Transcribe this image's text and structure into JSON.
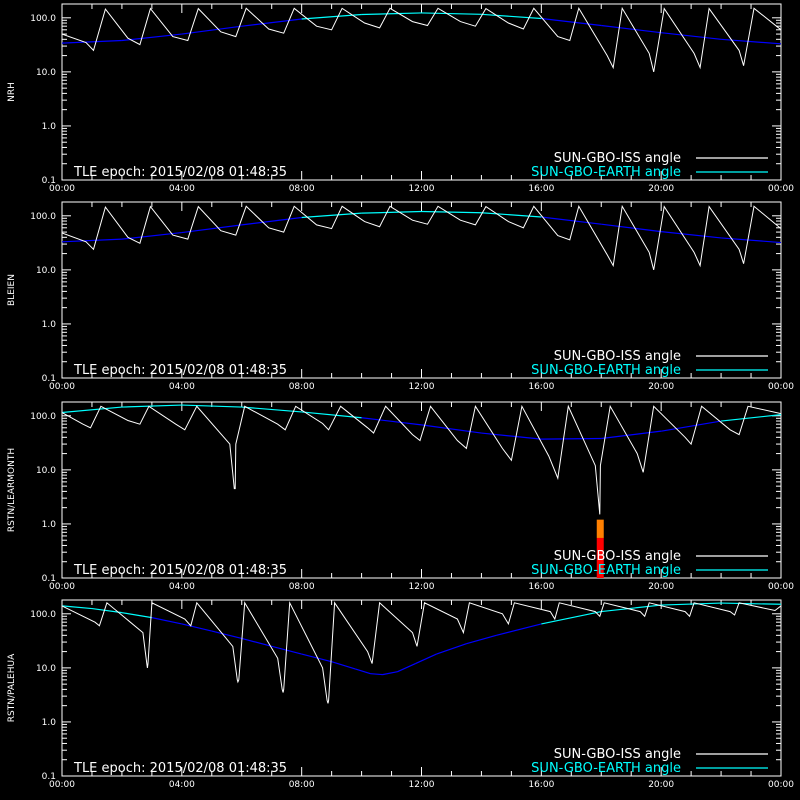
{
  "colors": {
    "background": "#000000",
    "axes": "#ffffff",
    "iss_curve": "#ffffff",
    "earth_curve_low": "#0000ff",
    "earth_curve_high": "#00ffff",
    "legend_earth_text": "#00ffff",
    "event_bar_top": "#ff8000",
    "event_bar_bottom": "#ff0000"
  },
  "legend": {
    "iss_label": "SUN-GBO-ISS angle",
    "earth_label": "SUN-GBO-EARTH angle"
  },
  "epoch_text": "TLE epoch: 2015/02/08 01:48:35",
  "chart_data": [
    {
      "type": "line",
      "ylabel": "NRH",
      "yscale": "log",
      "ylim": [
        0.1,
        180
      ],
      "yticks": [
        "0.1",
        "1.0",
        "10.0",
        "100.0"
      ],
      "xlim": [
        "00:00",
        "24:00"
      ],
      "xticks": [
        "00:00",
        "04:00",
        "08:00",
        "12:00",
        "16:00",
        "20:00",
        "00:00"
      ],
      "series": [
        {
          "name": "SUN-GBO-EARTH angle",
          "x": [
            0,
            2,
            4,
            6,
            8,
            10,
            12,
            14,
            16,
            18,
            20,
            22,
            24
          ],
          "values": [
            34,
            38,
            50,
            70,
            95,
            115,
            123,
            116,
            97,
            72,
            53,
            40,
            33
          ]
        },
        {
          "name": "SUN-GBO-ISS angle",
          "x": [
            0,
            0.8,
            1.05,
            1.45,
            2.2,
            2.6,
            2.95,
            3.7,
            4.2,
            4.55,
            5.3,
            5.8,
            6.15,
            6.9,
            7.4,
            7.75,
            8.5,
            9.0,
            9.35,
            10.1,
            10.6,
            10.95,
            11.7,
            12.2,
            12.55,
            13.3,
            13.8,
            14.15,
            14.9,
            15.4,
            15.75,
            16.55,
            16.95,
            17.25,
            18.2,
            18.4,
            18.7,
            19.6,
            19.75,
            20.1,
            21.1,
            21.3,
            21.6,
            22.6,
            22.75,
            23.1,
            24
          ],
          "values": [
            50,
            35,
            25,
            145,
            42,
            32,
            148,
            45,
            38,
            148,
            55,
            45,
            150,
            62,
            52,
            150,
            70,
            60,
            150,
            80,
            65,
            150,
            85,
            72,
            150,
            85,
            70,
            148,
            80,
            62,
            150,
            45,
            38,
            150,
            20,
            12,
            150,
            22,
            10,
            148,
            22,
            12,
            148,
            25,
            13,
            150,
            60
          ]
        }
      ]
    },
    {
      "type": "line",
      "ylabel": "BLEIEN",
      "yscale": "log",
      "ylim": [
        0.1,
        180
      ],
      "yticks": [
        "0.1",
        "1.0",
        "10.0",
        "100.0"
      ],
      "xlim": [
        "00:00",
        "24:00"
      ],
      "xticks": [
        "00:00",
        "04:00",
        "08:00",
        "12:00",
        "16:00",
        "20:00",
        "00:00"
      ],
      "series": [
        {
          "name": "SUN-GBO-EARTH angle",
          "x": [
            0,
            2,
            4,
            6,
            8,
            10,
            12,
            14,
            16,
            18,
            20,
            22,
            24
          ],
          "values": [
            33,
            37,
            49,
            68,
            93,
            112,
            120,
            114,
            95,
            70,
            51,
            39,
            32
          ]
        },
        {
          "name": "SUN-GBO-ISS angle",
          "x": [
            0,
            0.8,
            1.05,
            1.45,
            2.2,
            2.6,
            2.95,
            3.7,
            4.2,
            4.55,
            5.3,
            5.8,
            6.15,
            6.9,
            7.4,
            7.75,
            8.5,
            9.0,
            9.35,
            10.1,
            10.6,
            10.95,
            11.7,
            12.2,
            12.55,
            13.3,
            13.8,
            14.15,
            14.9,
            15.4,
            15.75,
            16.55,
            16.95,
            17.25,
            18.2,
            18.4,
            18.7,
            19.6,
            19.75,
            20.1,
            21.1,
            21.3,
            21.6,
            22.6,
            22.75,
            23.1,
            24
          ],
          "values": [
            48,
            33,
            24,
            145,
            40,
            31,
            148,
            44,
            37,
            148,
            53,
            44,
            150,
            60,
            50,
            150,
            68,
            58,
            150,
            78,
            63,
            150,
            83,
            70,
            150,
            83,
            68,
            148,
            78,
            60,
            150,
            43,
            36,
            150,
            19,
            12,
            150,
            21,
            10,
            148,
            21,
            12,
            148,
            24,
            13,
            150,
            58
          ]
        }
      ]
    },
    {
      "type": "line",
      "ylabel": "RSTN/LEARMONTH",
      "yscale": "log",
      "ylim": [
        0.1,
        180
      ],
      "yticks": [
        "0.1",
        "1.0",
        "10.0",
        "100.0"
      ],
      "xlim": [
        "00:00",
        "24:00"
      ],
      "xticks": [
        "00:00",
        "04:00",
        "08:00",
        "12:00",
        "16:00",
        "20:00",
        "00:00"
      ],
      "event_bar": {
        "x": 17.95,
        "ymin": 0.1,
        "ymid": 0.55,
        "ymax": 1.2
      },
      "series": [
        {
          "name": "SUN-GBO-EARTH angle",
          "x": [
            0,
            2,
            4,
            6,
            8,
            10,
            12,
            14,
            16,
            18,
            20,
            22,
            24
          ],
          "values": [
            115,
            145,
            158,
            145,
            118,
            92,
            68,
            48,
            37,
            38,
            52,
            80,
            105
          ]
        },
        {
          "name": "SUN-GBO-ISS angle",
          "x": [
            0,
            0.7,
            0.95,
            1.3,
            2.2,
            2.6,
            2.9,
            3.8,
            4.1,
            4.5,
            5.6,
            5.75,
            5.78,
            5.8,
            6.1,
            7.2,
            7.45,
            7.8,
            8.7,
            8.9,
            9.3,
            10.2,
            10.4,
            10.8,
            11.7,
            11.95,
            12.3,
            13.2,
            13.5,
            13.8,
            14.7,
            15.0,
            15.35,
            16.25,
            16.55,
            16.9,
            17.8,
            17.95,
            17.97,
            18.3,
            19.2,
            19.4,
            19.75,
            20.8,
            21.0,
            21.35,
            22.3,
            22.6,
            22.9,
            24
          ],
          "values": [
            115,
            70,
            60,
            150,
            82,
            70,
            150,
            70,
            55,
            150,
            30,
            4.5,
            4.5,
            30,
            150,
            70,
            55,
            150,
            72,
            55,
            150,
            60,
            48,
            150,
            45,
            35,
            150,
            35,
            25,
            150,
            25,
            15,
            150,
            18,
            7,
            150,
            12,
            1.5,
            12,
            150,
            20,
            9,
            150,
            40,
            30,
            150,
            55,
            45,
            150,
            110
          ]
        }
      ]
    },
    {
      "type": "line",
      "ylabel": "RSTN/PALEHUA",
      "yscale": "log",
      "ylim": [
        0.1,
        180
      ],
      "yticks": [
        "0.1",
        "1.0",
        "10.0",
        "100.0"
      ],
      "xlim": [
        "00:00",
        "24:00"
      ],
      "xticks": [
        "00:00",
        "04:00",
        "08:00",
        "12:00",
        "16:00",
        "20:00",
        "00:00"
      ],
      "series": [
        {
          "name": "SUN-GBO-EARTH angle",
          "x": [
            0,
            1,
            2,
            3,
            4,
            5,
            6,
            7,
            8,
            9,
            9.8,
            10.3,
            10.7,
            11.2,
            11.8,
            12.5,
            13.5,
            14.5,
            16,
            18,
            20,
            22,
            24
          ],
          "values": [
            140,
            125,
            105,
            85,
            65,
            48,
            35,
            25,
            18,
            13,
            9.5,
            7.8,
            7.5,
            8.5,
            12,
            18,
            28,
            40,
            65,
            110,
            145,
            158,
            150
          ]
        },
        {
          "name": "SUN-GBO-ISS angle",
          "x": [
            0,
            1.1,
            1.25,
            1.5,
            2.7,
            2.83,
            2.85,
            2.87,
            3.0,
            4.1,
            4.3,
            4.5,
            5.7,
            5.85,
            5.87,
            5.9,
            6.1,
            7.2,
            7.35,
            7.38,
            7.4,
            7.6,
            8.7,
            8.85,
            8.88,
            8.9,
            9.1,
            10.2,
            10.35,
            10.6,
            11.7,
            11.85,
            12.1,
            13.2,
            13.4,
            13.6,
            14.7,
            14.9,
            15.1,
            16.3,
            16.45,
            16.6,
            17.8,
            17.95,
            18.1,
            19.3,
            19.45,
            19.6,
            20.8,
            20.95,
            21.1,
            22.3,
            22.45,
            22.6,
            23.8,
            24
          ],
          "values": [
            140,
            70,
            60,
            160,
            45,
            12,
            10,
            12,
            160,
            80,
            60,
            160,
            25,
            6,
            5.5,
            6,
            160,
            15,
            4,
            3.5,
            4,
            160,
            10,
            2.5,
            2.2,
            2.5,
            160,
            20,
            12,
            160,
            45,
            25,
            160,
            80,
            45,
            160,
            100,
            65,
            160,
            110,
            80,
            160,
            110,
            90,
            160,
            110,
            90,
            160,
            110,
            90,
            160,
            110,
            95,
            160,
            115,
            140
          ]
        }
      ]
    }
  ]
}
